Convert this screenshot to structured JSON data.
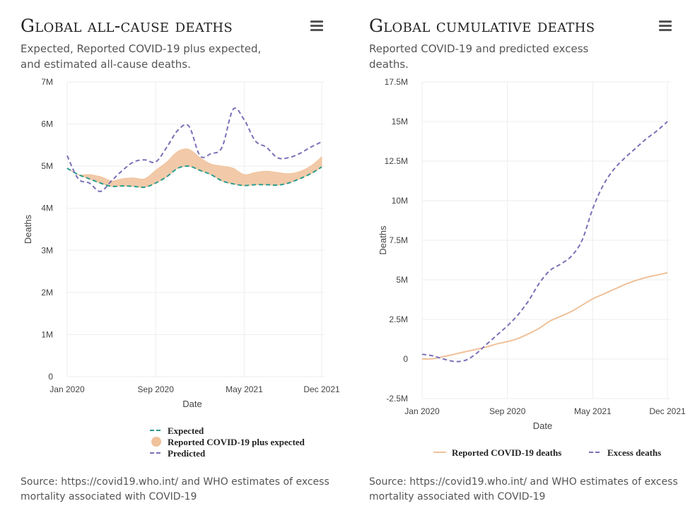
{
  "panels": [
    {
      "title": "Global all-cause deaths",
      "subtitle": "Expected, Reported COVID-19 plus expected, and estimated all-cause deaths.",
      "menu_icon": "hamburger-menu-icon",
      "source": "Source: https://covid19.who.int/ and WHO estimates of excess mortality associated with COVID-19"
    },
    {
      "title": "Global cumulative deaths",
      "subtitle": "Reported COVID-19 and predicted excess deaths.",
      "menu_icon": "hamburger-menu-icon",
      "source": "Source: https://covid19.who.int/ and WHO estimates of excess mortality associated with COVID-19"
    }
  ],
  "chart_data": [
    {
      "type": "area",
      "xlabel": "Date",
      "ylabel": "Deaths",
      "xlim": [
        "2020-01",
        "2021-12"
      ],
      "ylim": [
        0,
        7000000
      ],
      "yticks": [
        0,
        1000000,
        2000000,
        3000000,
        4000000,
        5000000,
        6000000,
        7000000
      ],
      "ytick_labels": [
        "0",
        "1M",
        "2M",
        "3M",
        "4M",
        "5M",
        "6M",
        "7M"
      ],
      "xticks": [
        "2020-01",
        "2020-09",
        "2021-05",
        "2021-12"
      ],
      "xtick_labels": [
        "Jan 2020",
        "Sep 2020",
        "May 2021",
        "Dec 2021"
      ],
      "grid": true,
      "legend_position": "bottom",
      "x": [
        "2020-01",
        "2020-02",
        "2020-03",
        "2020-04",
        "2020-05",
        "2020-06",
        "2020-07",
        "2020-08",
        "2020-09",
        "2020-10",
        "2020-11",
        "2020-12",
        "2021-01",
        "2021-02",
        "2021-03",
        "2021-04",
        "2021-05",
        "2021-06",
        "2021-07",
        "2021-08",
        "2021-09",
        "2021-10",
        "2021-11",
        "2021-12"
      ],
      "series": [
        {
          "name": "Expected",
          "color": "#2a9d8f",
          "style": "dashed",
          "values": [
            4950000,
            4800000,
            4700000,
            4600000,
            4520000,
            4530000,
            4520000,
            4500000,
            4600000,
            4750000,
            4950000,
            5000000,
            4900000,
            4800000,
            4650000,
            4580000,
            4540000,
            4560000,
            4560000,
            4550000,
            4600000,
            4700000,
            4820000,
            4980000
          ]
        },
        {
          "name": "Reported COVID-19 plus expected",
          "color": "#f0c19a",
          "style": "band",
          "values": [
            4950000,
            4800000,
            4800000,
            4750000,
            4650000,
            4700000,
            4720000,
            4700000,
            4900000,
            5100000,
            5350000,
            5400000,
            5200000,
            5050000,
            5000000,
            4950000,
            4800000,
            4850000,
            4880000,
            4850000,
            4820000,
            4870000,
            5000000,
            5220000
          ]
        },
        {
          "name": "Predicted",
          "color": "#7b6fb6",
          "style": "dashed",
          "values": [
            5250000,
            4700000,
            4600000,
            4400000,
            4650000,
            4900000,
            5100000,
            5150000,
            5100000,
            5450000,
            5850000,
            5950000,
            5250000,
            5300000,
            5450000,
            6350000,
            6100000,
            5600000,
            5450000,
            5200000,
            5200000,
            5300000,
            5450000,
            5580000
          ]
        }
      ]
    },
    {
      "type": "line",
      "xlabel": "Date",
      "ylabel": "Deaths",
      "xlim": [
        "2020-01",
        "2021-12"
      ],
      "ylim": [
        -2500000,
        17500000
      ],
      "yticks": [
        -2500000,
        0,
        2500000,
        5000000,
        7500000,
        10000000,
        12500000,
        15000000,
        17500000
      ],
      "ytick_labels": [
        "-2.5M",
        "0",
        "2.5M",
        "5M",
        "7.5M",
        "10M",
        "12.5M",
        "15M",
        "17.5M"
      ],
      "xticks": [
        "2020-01",
        "2020-09",
        "2021-05",
        "2021-12"
      ],
      "xtick_labels": [
        "Jan 2020",
        "Sep 2020",
        "May 2021",
        "Dec 2021"
      ],
      "grid": true,
      "legend_position": "bottom",
      "x": [
        "2020-01",
        "2020-02",
        "2020-03",
        "2020-04",
        "2020-05",
        "2020-06",
        "2020-07",
        "2020-08",
        "2020-09",
        "2020-10",
        "2020-11",
        "2020-12",
        "2021-01",
        "2021-02",
        "2021-03",
        "2021-04",
        "2021-05",
        "2021-06",
        "2021-07",
        "2021-08",
        "2021-09",
        "2021-10",
        "2021-11",
        "2021-12"
      ],
      "series": [
        {
          "name": "Reported COVID-19 deaths",
          "color": "#f0c19a",
          "style": "solid",
          "values": [
            0,
            20000,
            150000,
            300000,
            450000,
            600000,
            750000,
            950000,
            1100000,
            1300000,
            1600000,
            1950000,
            2400000,
            2700000,
            3000000,
            3400000,
            3800000,
            4100000,
            4400000,
            4700000,
            4950000,
            5150000,
            5300000,
            5450000
          ]
        },
        {
          "name": "Excess deaths",
          "color": "#7b6fb6",
          "style": "dashed",
          "values": [
            300000,
            200000,
            0,
            -150000,
            -100000,
            300000,
            900000,
            1500000,
            2100000,
            2800000,
            3700000,
            4800000,
            5600000,
            6000000,
            6500000,
            7500000,
            9500000,
            11000000,
            12000000,
            12700000,
            13300000,
            13900000,
            14400000,
            15000000
          ]
        }
      ]
    }
  ]
}
